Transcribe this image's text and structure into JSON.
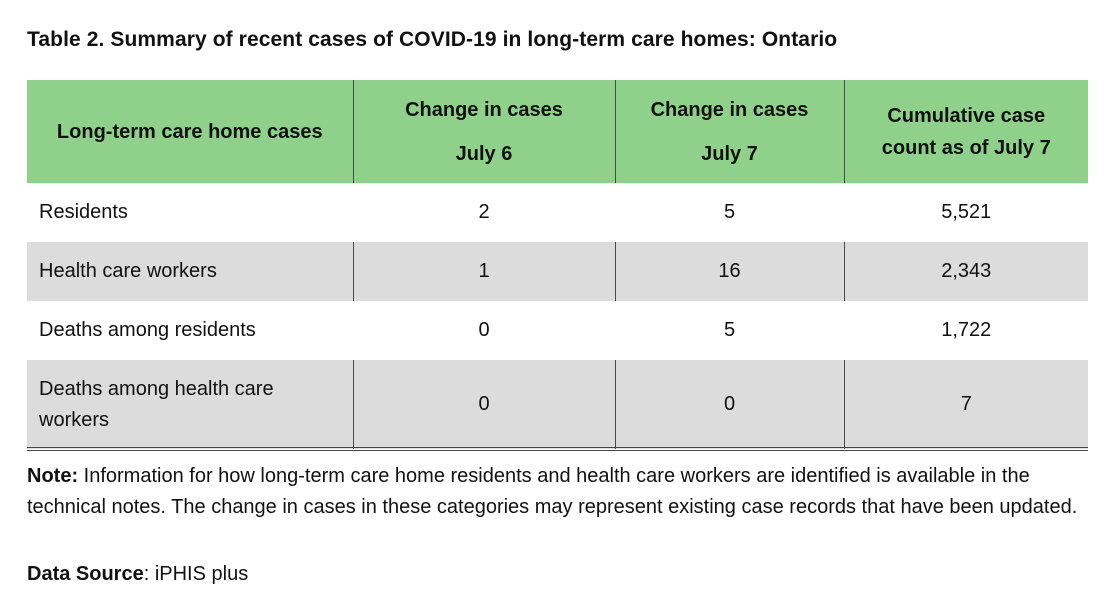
{
  "title": "Table 2. Summary of recent cases of COVID-19 in long-term care homes: Ontario",
  "table": {
    "headers": [
      {
        "line1": "Long-term care home cases",
        "line2": ""
      },
      {
        "line1": "Change in cases",
        "line2": "July 6"
      },
      {
        "line1": "Change in cases",
        "line2": "July 7"
      },
      {
        "line1": "Cumulative case",
        "line2": "count as of July 7"
      }
    ],
    "rows": [
      {
        "label": "Residents",
        "jul6": "2",
        "jul7": "5",
        "cumulative": "5,521"
      },
      {
        "label": "Health care workers",
        "jul6": "1",
        "jul7": "16",
        "cumulative": "2,343"
      },
      {
        "label": "Deaths among residents",
        "jul6": "0",
        "jul7": "5",
        "cumulative": "1,722"
      },
      {
        "label_line1": "Deaths among health care",
        "label_line2": "workers",
        "jul6": "0",
        "jul7": "0",
        "cumulative": "7"
      }
    ],
    "header_color": "#8fd18a",
    "alt_row_color": "#dcdcdc"
  },
  "note": {
    "label": "Note:",
    "text": " Information for how long-term care home residents and health care workers are identified is available in the technical notes. The change in cases in these categories may represent existing case records that have been updated."
  },
  "source": {
    "label": "Data Source",
    "text": ": iPHIS plus"
  }
}
